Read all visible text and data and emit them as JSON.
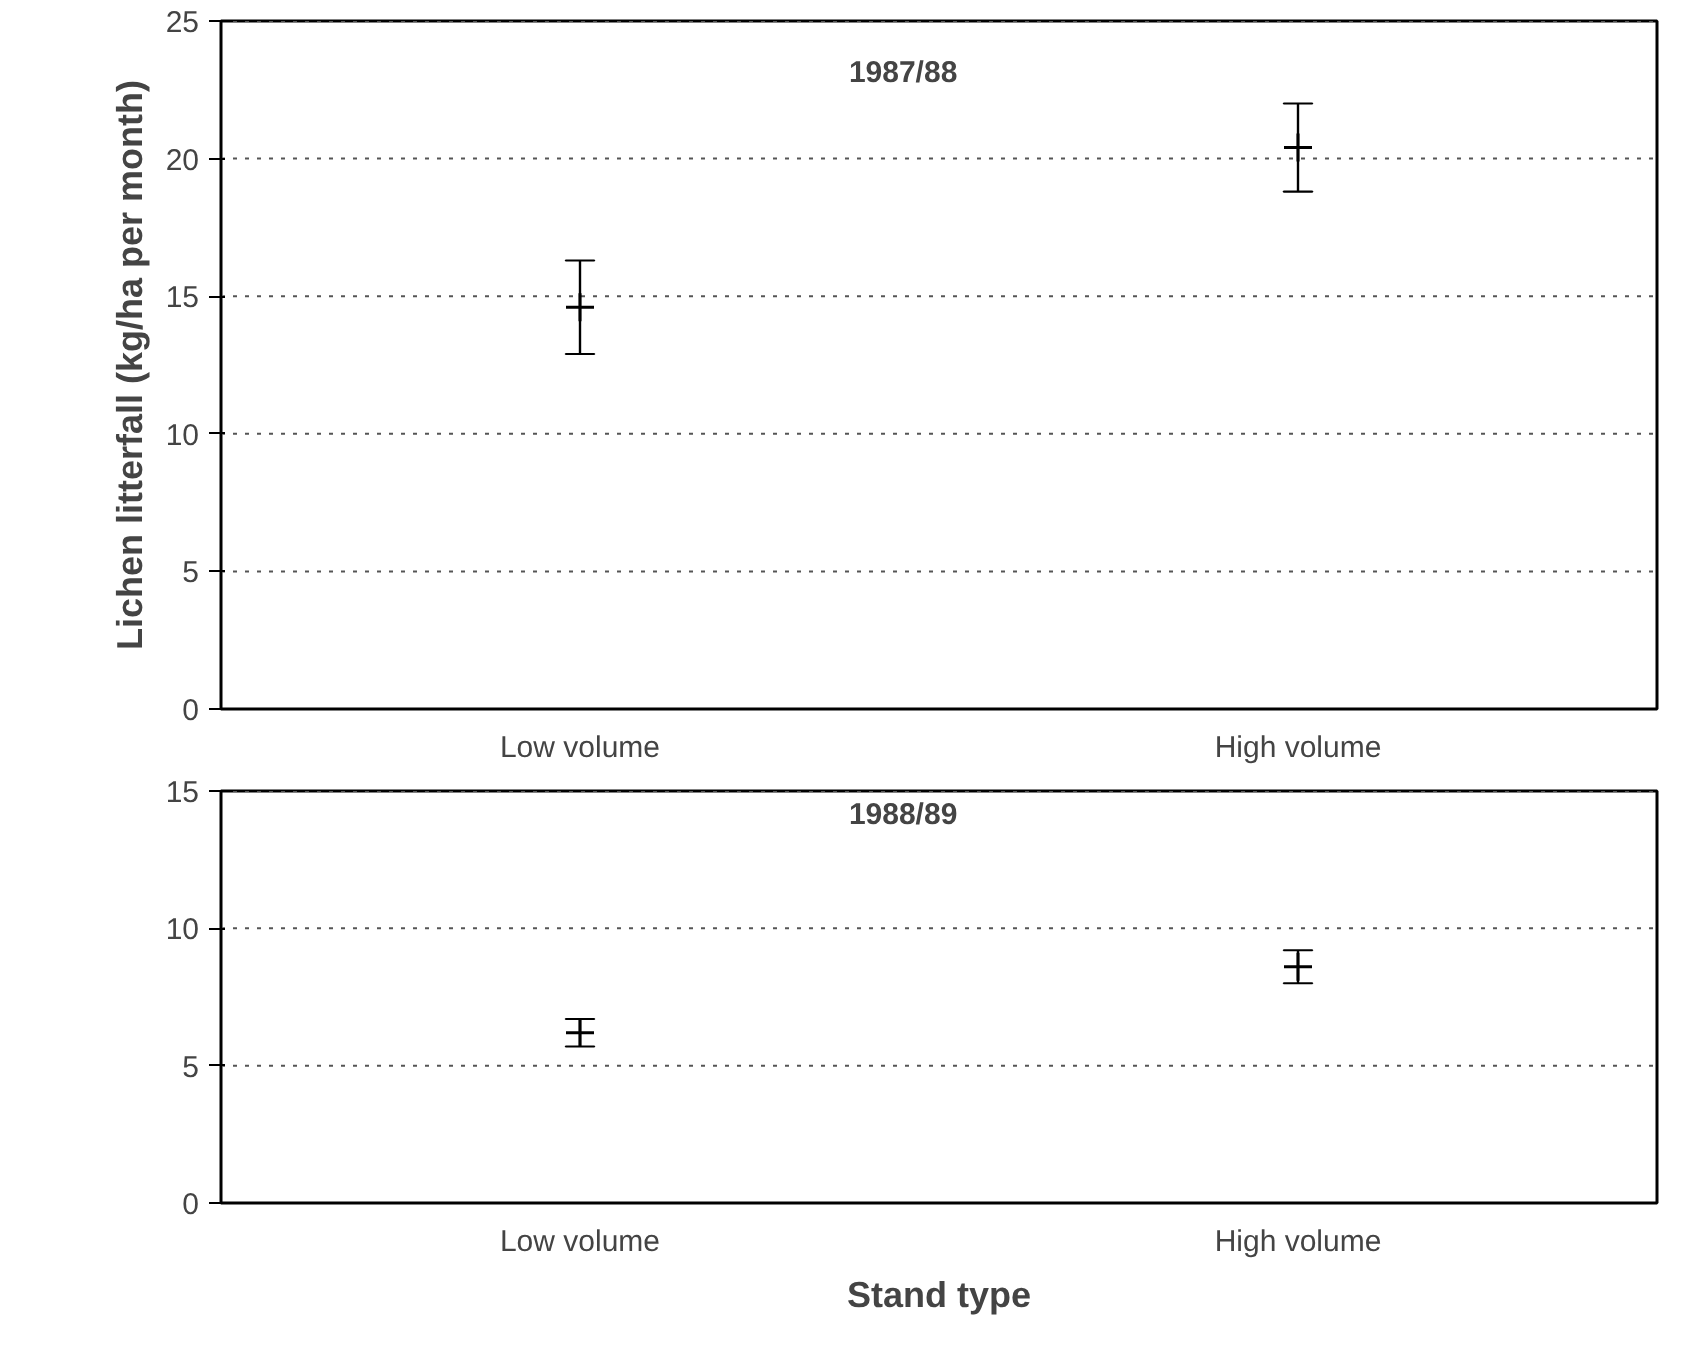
{
  "chart_data": [
    {
      "type": "scatter",
      "title": "1987/88",
      "ylabel": "Lichen litterfall (kg/ha per month)",
      "categories": [
        "Low volume",
        "High volume"
      ],
      "values": [
        14.6,
        20.4
      ],
      "errors": [
        [
          12.9,
          16.3
        ],
        [
          18.8,
          22.0
        ]
      ],
      "color": "#000000",
      "marker": "cross",
      "ylim": [
        0,
        25
      ],
      "yticks": [
        0,
        5,
        10,
        15,
        20,
        25
      ],
      "grid": "y"
    },
    {
      "type": "scatter",
      "title": "1988/89",
      "xlabel": "Stand type",
      "categories": [
        "Low volume",
        "High volume"
      ],
      "values": [
        6.2,
        8.6
      ],
      "errors": [
        [
          5.7,
          6.7
        ],
        [
          8.0,
          9.2
        ]
      ],
      "color": "#000000",
      "marker": "cross",
      "ylim": [
        0,
        15
      ],
      "yticks": [
        0,
        5,
        10,
        15
      ],
      "grid": "y"
    }
  ]
}
